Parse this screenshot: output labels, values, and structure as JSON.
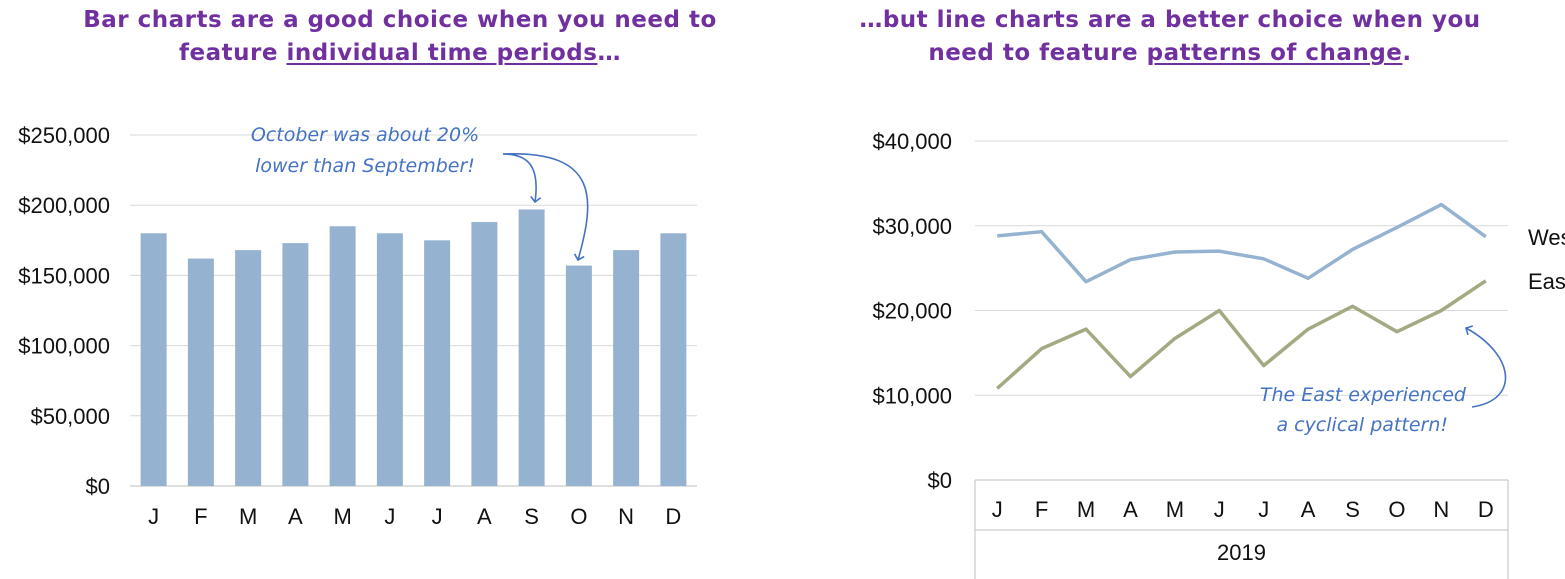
{
  "titles": {
    "left": {
      "pre": "Bar charts are a good choice when you need to feature ",
      "em": "individual time periods",
      "post": "…"
    },
    "right": {
      "pre": "…but line charts are a better choice when you need to feature ",
      "em": "patterns of change",
      "post": "."
    }
  },
  "chart_data": [
    {
      "type": "bar",
      "categories": [
        "J",
        "F",
        "M",
        "A",
        "M",
        "J",
        "J",
        "A",
        "S",
        "O",
        "N",
        "D"
      ],
      "values": [
        180000,
        162000,
        168000,
        173000,
        185000,
        180000,
        175000,
        188000,
        197000,
        157000,
        168000,
        180000
      ],
      "ylim": [
        0,
        250000
      ],
      "yticks": [
        0,
        50000,
        100000,
        150000,
        200000,
        250000
      ],
      "ytick_labels": [
        "$0",
        "$50,000",
        "$100,000",
        "$150,000",
        "$200,000",
        "$250,000"
      ],
      "grid": true,
      "bar_color": "#95b3d0",
      "annotation": {
        "lines": [
          "October was about 20%",
          "lower than September!"
        ],
        "color": "#4472c4"
      }
    },
    {
      "type": "line",
      "categories": [
        "J",
        "F",
        "M",
        "A",
        "M",
        "J",
        "J",
        "A",
        "S",
        "O",
        "N",
        "D"
      ],
      "group_label": "2019",
      "series": [
        {
          "name": "West",
          "values": [
            28800,
            29300,
            23400,
            26000,
            26900,
            27000,
            26100,
            23800,
            27200,
            29800,
            32500,
            28700
          ],
          "color": "#95b3d0"
        },
        {
          "name": "East",
          "values": [
            10800,
            15500,
            17800,
            12200,
            16700,
            20000,
            13500,
            17800,
            20500,
            17500,
            20000,
            23500
          ],
          "color": "#a3aa82"
        }
      ],
      "ylim": [
        0,
        40000
      ],
      "yticks": [
        0,
        10000,
        20000,
        30000,
        40000
      ],
      "ytick_labels": [
        "$0",
        "$10,000",
        "$20,000",
        "$30,000",
        "$40,000"
      ],
      "grid": true,
      "annotation": {
        "lines": [
          "The East experienced",
          "a cyclical pattern!"
        ],
        "color": "#4472c4"
      }
    }
  ]
}
